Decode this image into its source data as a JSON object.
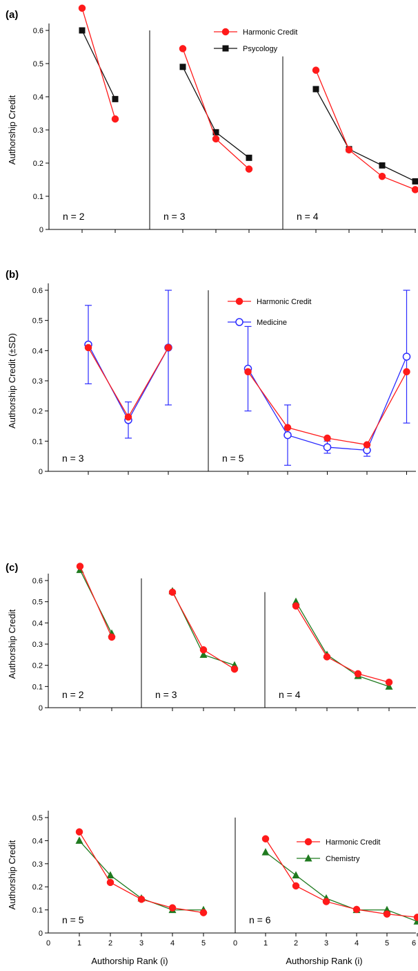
{
  "panel_labels": [
    "(a)",
    "(b)",
    "(c)"
  ],
  "colors": {
    "harmonic": "#ff1a1a",
    "psychology": "#111111",
    "medicine": "#2b2bff",
    "chemistry": "#1f7a1f"
  },
  "axis_labels": {
    "a_y": "Authorship Credit",
    "b_y": "Authorship Credit (±SD)",
    "c_y_top": "Authorship Credit",
    "c_y_bottom": "Authorship Credit",
    "c_x_left": "Authorship Rank (i)",
    "c_x_right": "Authorship Rank (i)"
  },
  "legends": {
    "a": [
      "Harmonic Credit",
      "Psycology"
    ],
    "b": [
      "Harmonic Credit",
      "Medicine"
    ],
    "c": [
      "Harmonic Credit",
      "Chemistry"
    ]
  },
  "chart_data": [
    {
      "panel": "(a)",
      "type": "line",
      "ylabel": "Authorship Credit",
      "ylim": [
        0,
        0.6
      ],
      "yticks": [
        0,
        0.1,
        0.2,
        0.3,
        0.4,
        0.5,
        0.6
      ],
      "subplots": [
        {
          "label": "n = 2",
          "x": [
            1,
            2
          ],
          "series": [
            {
              "name": "Harmonic Credit",
              "values": [
                0.667,
                0.333
              ]
            },
            {
              "name": "Psycology",
              "values": [
                0.6,
                0.393
              ]
            }
          ]
        },
        {
          "label": "n = 3",
          "x": [
            1,
            2,
            3
          ],
          "series": [
            {
              "name": "Harmonic Credit",
              "values": [
                0.545,
                0.273,
                0.182
              ]
            },
            {
              "name": "Psycology",
              "values": [
                0.49,
                0.293,
                0.216
              ]
            }
          ]
        },
        {
          "label": "n = 4",
          "x": [
            1,
            2,
            3,
            4
          ],
          "series": [
            {
              "name": "Harmonic Credit",
              "values": [
                0.48,
                0.24,
                0.16,
                0.12
              ]
            },
            {
              "name": "Psycology",
              "values": [
                0.423,
                0.242,
                0.193,
                0.145
              ]
            }
          ]
        }
      ]
    },
    {
      "panel": "(b)",
      "type": "line",
      "ylabel": "Authorship Credit (±SD)",
      "ylim": [
        0,
        0.6
      ],
      "yticks": [
        0,
        0.1,
        0.2,
        0.3,
        0.4,
        0.5,
        0.6
      ],
      "subplots": [
        {
          "label": "n = 3",
          "x": [
            1,
            2,
            3
          ],
          "series": [
            {
              "name": "Harmonic Credit",
              "values": [
                0.41,
                0.18,
                0.41
              ]
            },
            {
              "name": "Medicine",
              "values": [
                0.42,
                0.17,
                0.41
              ],
              "sd": [
                0.13,
                0.06,
                0.19
              ]
            }
          ]
        },
        {
          "label": "n = 5",
          "x": [
            1,
            2,
            3,
            4,
            5
          ],
          "series": [
            {
              "name": "Harmonic Credit",
              "values": [
                0.33,
                0.145,
                0.11,
                0.088,
                0.33
              ]
            },
            {
              "name": "Medicine",
              "values": [
                0.34,
                0.12,
                0.08,
                0.07,
                0.38
              ],
              "sd": [
                0.14,
                0.1,
                0.02,
                0.02,
                0.22
              ]
            }
          ]
        }
      ]
    },
    {
      "panel": "(c) top",
      "type": "line",
      "ylabel": "Authorship Credit",
      "ylim": [
        0,
        0.6
      ],
      "yticks": [
        0,
        0.1,
        0.2,
        0.3,
        0.4,
        0.5,
        0.6
      ],
      "subplots": [
        {
          "label": "n = 2",
          "x": [
            1,
            2
          ],
          "series": [
            {
              "name": "Harmonic Credit",
              "values": [
                0.667,
                0.333
              ]
            },
            {
              "name": "Chemistry",
              "values": [
                0.65,
                0.35
              ]
            }
          ]
        },
        {
          "label": "n = 3",
          "x": [
            1,
            2,
            3
          ],
          "series": [
            {
              "name": "Harmonic Credit",
              "values": [
                0.545,
                0.273,
                0.182
              ]
            },
            {
              "name": "Chemistry",
              "values": [
                0.55,
                0.25,
                0.2
              ]
            }
          ]
        },
        {
          "label": "n = 4",
          "x": [
            1,
            2,
            3,
            4
          ],
          "series": [
            {
              "name": "Harmonic Credit",
              "values": [
                0.48,
                0.24,
                0.16,
                0.12
              ]
            },
            {
              "name": "Chemistry",
              "values": [
                0.5,
                0.25,
                0.15,
                0.1
              ]
            }
          ]
        }
      ]
    },
    {
      "panel": "(c) bottom",
      "type": "line",
      "ylabel": "Authorship Credit",
      "xlabel": "Authorship Rank (i)",
      "ylim": [
        0,
        0.5
      ],
      "yticks": [
        0,
        0.1,
        0.2,
        0.3,
        0.4,
        0.5
      ],
      "xlim": [
        0,
        6
      ],
      "xticks_left": [
        0,
        1,
        2,
        3,
        4,
        5
      ],
      "xticks_right": [
        0,
        1,
        2,
        3,
        4,
        5,
        6
      ],
      "subplots": [
        {
          "label": "n = 5",
          "x": [
            1,
            2,
            3,
            4,
            5
          ],
          "series": [
            {
              "name": "Harmonic Credit",
              "values": [
                0.438,
                0.219,
                0.146,
                0.109,
                0.088
              ]
            },
            {
              "name": "Chemistry",
              "values": [
                0.4,
                0.25,
                0.15,
                0.1,
                0.1
              ]
            }
          ]
        },
        {
          "label": "n = 6",
          "x": [
            1,
            2,
            3,
            4,
            5,
            6
          ],
          "series": [
            {
              "name": "Harmonic Credit",
              "values": [
                0.408,
                0.204,
                0.136,
                0.102,
                0.082,
                0.068
              ]
            },
            {
              "name": "Chemistry",
              "values": [
                0.35,
                0.25,
                0.15,
                0.1,
                0.1,
                0.05
              ]
            }
          ]
        }
      ]
    }
  ]
}
